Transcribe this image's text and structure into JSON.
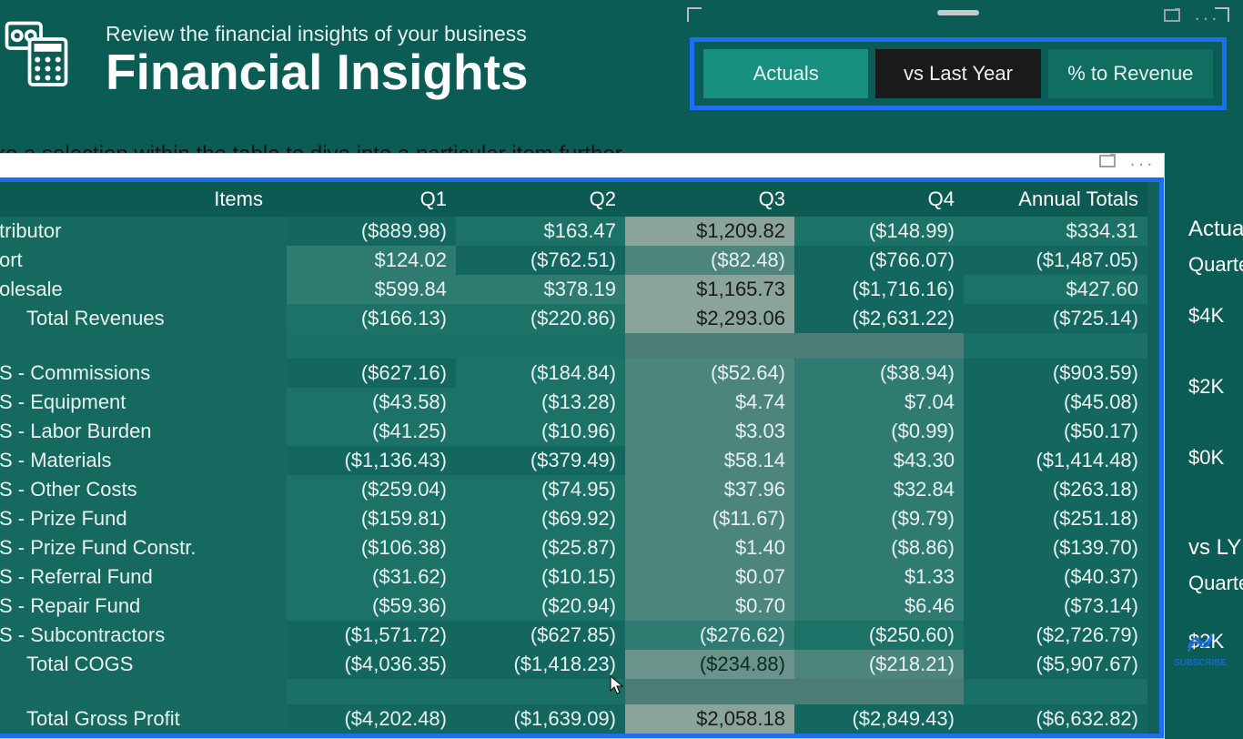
{
  "header": {
    "subtitle": "Review the financial insights of your business",
    "title": "Financial Insights"
  },
  "instruction": "ke a selection within the table to dive into a particular item further",
  "tabs": [
    {
      "label": "Actuals",
      "state": "active"
    },
    {
      "label": "vs Last Year",
      "state": "inactive"
    },
    {
      "label": "% to Revenue",
      "state": "other"
    }
  ],
  "table": {
    "columns": [
      "Items",
      "Q1",
      "Q2",
      "Q3",
      "Q4",
      "Annual Totals"
    ],
    "highlight_border_color": "#1c6ff5",
    "rows": [
      {
        "item": "tributor",
        "indent": false,
        "q1": "($889.98)",
        "q2": "$163.47",
        "q3": "$1,209.82",
        "q4": "($148.99)",
        "annual": "$334.31",
        "bg": [
          "b0",
          "b1",
          "b5",
          "b1",
          "b1"
        ]
      },
      {
        "item": "ort",
        "indent": false,
        "q1": "$124.02",
        "q2": "($762.51)",
        "q3": "($82.48)",
        "q4": "($766.07)",
        "annual": "($1,487.05)",
        "bg": [
          "b2",
          "b0",
          "b3",
          "b0",
          "b0"
        ]
      },
      {
        "item": "olesale",
        "indent": false,
        "q1": "$599.84",
        "q2": "$378.19",
        "q3": "$1,165.73",
        "q4": "($1,716.16)",
        "annual": "$427.60",
        "bg": [
          "b2",
          "b2",
          "b5",
          "b0",
          "b1"
        ]
      },
      {
        "item": "Total Revenues",
        "indent": true,
        "q1": "($166.13)",
        "q2": "($220.86)",
        "q3": "$2,293.06",
        "q4": "($2,631.22)",
        "annual": "($725.14)",
        "bg": [
          "b1",
          "b1",
          "b5",
          "b0",
          "b0"
        ]
      },
      {
        "spacer": true
      },
      {
        "item": "S - Commissions",
        "indent": false,
        "q1": "($627.16)",
        "q2": "($184.84)",
        "q3": "($52.64)",
        "q4": "($38.94)",
        "annual": "($903.59)",
        "bg": [
          "b0",
          "b1",
          "b3",
          "b2",
          "b0"
        ]
      },
      {
        "item": "S - Equipment",
        "indent": false,
        "q1": "($43.58)",
        "q2": "($13.28)",
        "q3": "$4.74",
        "q4": "$7.04",
        "annual": "($45.08)",
        "bg": [
          "b1",
          "b1",
          "b3",
          "b2",
          "b0"
        ]
      },
      {
        "item": "S - Labor Burden",
        "indent": false,
        "q1": "($41.25)",
        "q2": "($10.96)",
        "q3": "$3.03",
        "q4": "($0.99)",
        "annual": "($50.17)",
        "bg": [
          "b1",
          "b1",
          "b3",
          "b2",
          "b0"
        ]
      },
      {
        "item": "S - Materials",
        "indent": false,
        "q1": "($1,136.43)",
        "q2": "($379.49)",
        "q3": "$58.14",
        "q4": "$43.30",
        "annual": "($1,414.48)",
        "bg": [
          "b0",
          "b0",
          "b3",
          "b2",
          "b0"
        ]
      },
      {
        "item": "S - Other Costs",
        "indent": false,
        "q1": "($259.04)",
        "q2": "($74.95)",
        "q3": "$37.96",
        "q4": "$32.84",
        "annual": "($263.18)",
        "bg": [
          "b1",
          "b1",
          "b3",
          "b2",
          "b0"
        ]
      },
      {
        "item": "S - Prize Fund",
        "indent": false,
        "q1": "($159.81)",
        "q2": "($69.92)",
        "q3": "($11.67)",
        "q4": "($9.79)",
        "annual": "($251.18)",
        "bg": [
          "b1",
          "b1",
          "b3",
          "b2",
          "b0"
        ]
      },
      {
        "item": "S - Prize Fund Constr.",
        "indent": false,
        "q1": "($106.38)",
        "q2": "($25.87)",
        "q3": "$1.40",
        "q4": "($8.86)",
        "annual": "($139.70)",
        "bg": [
          "b1",
          "b1",
          "b3",
          "b2",
          "b0"
        ]
      },
      {
        "item": "S - Referral Fund",
        "indent": false,
        "q1": "($31.62)",
        "q2": "($10.15)",
        "q3": "$0.07",
        "q4": "$1.33",
        "annual": "($40.37)",
        "bg": [
          "b1",
          "b1",
          "b3",
          "b2",
          "b0"
        ]
      },
      {
        "item": "S - Repair Fund",
        "indent": false,
        "q1": "($59.36)",
        "q2": "($20.94)",
        "q3": "$0.70",
        "q4": "$6.46",
        "annual": "($73.14)",
        "bg": [
          "b1",
          "b1",
          "b3",
          "b2",
          "b0"
        ]
      },
      {
        "item": "S - Subcontractors",
        "indent": false,
        "q1": "($1,571.72)",
        "q2": "($627.85)",
        "q3": "($276.62)",
        "q4": "($250.60)",
        "annual": "($2,726.79)",
        "bg": [
          "b0",
          "b0",
          "b2",
          "b1",
          "b0"
        ]
      },
      {
        "item": "Total COGS",
        "indent": true,
        "q1": "($4,036.35)",
        "q2": "($1,418.23)",
        "q3": "($234.88)",
        "q4": "($218.21)",
        "annual": "($5,907.67)",
        "bg": [
          "b0",
          "b0",
          "b4",
          "b3",
          "b0"
        ]
      },
      {
        "spacer": true
      },
      {
        "item": "Total Gross Profit",
        "indent": true,
        "q1": "($4,202.48)",
        "q2": "($1,639.09)",
        "q3": "$2,058.18",
        "q4": "($2,849.43)",
        "annual": "($6,632.82)",
        "bg": [
          "b0",
          "b0",
          "b5",
          "b0",
          "b0"
        ]
      }
    ]
  },
  "rightPanel": {
    "header1": "Actua",
    "sub1": "Quarte",
    "ticks1": [
      "$4K",
      "$2K",
      "$0K"
    ],
    "header2": "vs LY",
    "sub2": "Quarte",
    "ticks2": [
      "$2K"
    ]
  },
  "colors": {
    "page_bg": "#0a5c55",
    "tab_active": "#18907f",
    "tab_inactive": "#1a1a1a",
    "tab_other": "#106e61",
    "highlight": "#1c6ff5",
    "cell_base": "#15695f"
  }
}
